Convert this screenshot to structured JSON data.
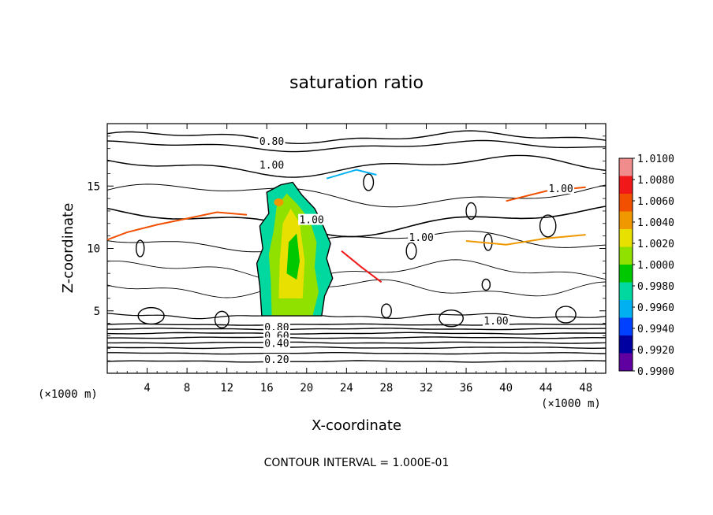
{
  "chart_data": {
    "type": "heatmap",
    "title": "saturation ratio",
    "xlabel": "X-coordinate",
    "ylabel": "Z-coordinate",
    "x_unit": "(×1000 m)",
    "y_unit": "(×1000 m)",
    "xlim": [
      0,
      50
    ],
    "ylim": [
      0,
      20
    ],
    "x_ticks": [
      "4",
      "8",
      "12",
      "16",
      "20",
      "24",
      "28",
      "32",
      "36",
      "40",
      "44",
      "48"
    ],
    "y_ticks": [
      "5",
      "10",
      "15"
    ],
    "contour_interval_text": "CONTOUR INTERVAL = 1.000E-01",
    "contour_labels": [
      {
        "text": "0.80",
        "x": 16.5,
        "z": 18.5
      },
      {
        "text": "1.00",
        "x": 16.5,
        "z": 16.6
      },
      {
        "text": "1.00",
        "x": 45.5,
        "z": 14.7
      },
      {
        "text": "1.00",
        "x": 31.5,
        "z": 10.8
      },
      {
        "text": "1.00",
        "x": 20.5,
        "z": 12.2
      },
      {
        "text": "1.00",
        "x": 39.0,
        "z": 4.1
      },
      {
        "text": "0.80",
        "x": 17.0,
        "z": 3.6
      },
      {
        "text": "0.60",
        "x": 17.0,
        "z": 2.9
      },
      {
        "text": "0.40",
        "x": 17.0,
        "z": 2.3
      },
      {
        "text": "0.20",
        "x": 17.0,
        "z": 1.0
      }
    ],
    "colorbar": {
      "labels": [
        "1.0100",
        "1.0080",
        "1.0060",
        "1.0040",
        "1.0020",
        "1.0000",
        "0.9980",
        "0.9960",
        "0.9940",
        "0.9920",
        "0.9900"
      ],
      "colors": [
        "#f08c8c",
        "#f01818",
        "#f05000",
        "#f09800",
        "#e8e000",
        "#90e000",
        "#00c800",
        "#00d8a0",
        "#00b0f0",
        "#0040ff",
        "#0000a0",
        "#6000a0"
      ]
    }
  }
}
